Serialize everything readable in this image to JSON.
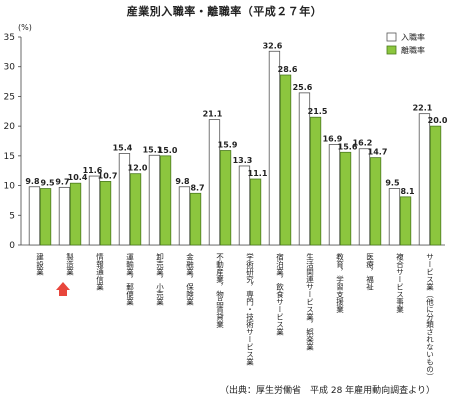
{
  "title": "産業別入職率・離職率（平成２７年）",
  "unit": "(%)",
  "source": "（出典：厚生労働省　平成 28 年雇用動向調査より）",
  "colors": {
    "entry_fill": "#ffffff",
    "entry_stroke": "#555555",
    "exit_fill": "#8cc63e",
    "exit_stroke": "#4b7a1f",
    "arrow": "#e8463c"
  },
  "chart_data": {
    "type": "bar",
    "title": "産業別入職率・離職率（平成２７年）",
    "ylabel": "(%)",
    "ylim": [
      0,
      35
    ],
    "yticks": [
      0,
      5,
      10,
      15,
      20,
      25,
      30,
      35
    ],
    "legend_position": "top-right",
    "categories": [
      "建設業",
      "製造業",
      "情報通信業",
      "運輸業，郵便業",
      "卸売業，小売業",
      "金融業，保険業",
      "不動産業，物品賃貸業",
      "学術研究，専門・技術サービス業",
      "宿泊業，飲食サービス業",
      "生活関連サービス業，娯楽業",
      "教育，学習支援業",
      "医療，福祉",
      "複合サービス事業",
      "サービス業（他に分類されないもの）"
    ],
    "series": [
      {
        "name": "入職率",
        "values": [
          9.8,
          9.7,
          11.6,
          15.4,
          15.1,
          9.8,
          21.1,
          13.3,
          32.6,
          25.6,
          16.9,
          16.2,
          9.5,
          22.1
        ]
      },
      {
        "name": "離職率",
        "values": [
          9.5,
          10.4,
          10.7,
          12.0,
          15.0,
          8.7,
          15.9,
          11.1,
          28.6,
          21.5,
          15.6,
          14.7,
          8.1,
          20.0
        ]
      }
    ],
    "highlight_category": "製造業"
  }
}
